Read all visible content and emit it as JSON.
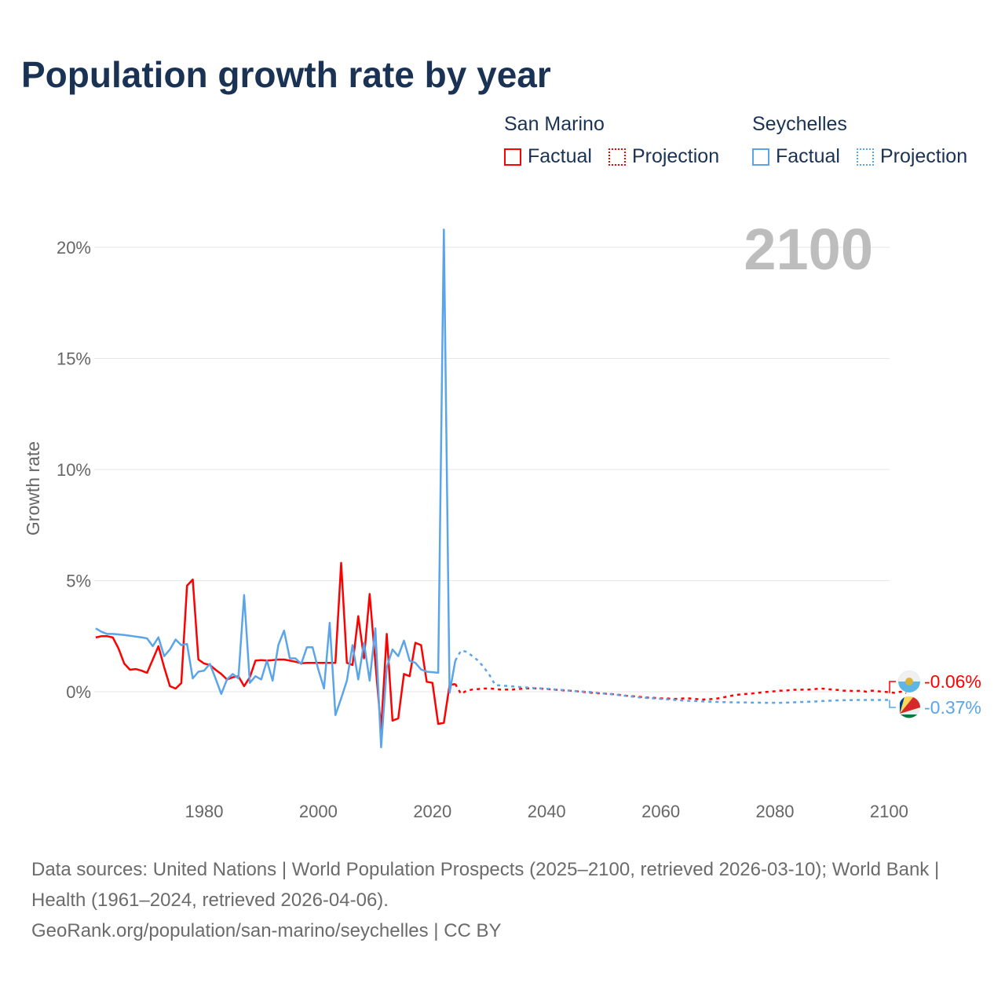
{
  "title": "Population growth rate by year",
  "legend": {
    "groups": [
      {
        "name": "San Marino",
        "color": "#ff0000",
        "factual_label": "Factual",
        "projection_label": "Projection"
      },
      {
        "name": "Seychelles",
        "color": "#5aa5ea",
        "factual_label": "Factual",
        "projection_label": "Projection"
      }
    ]
  },
  "year_display": "2100",
  "chart_data": {
    "type": "line",
    "title": "Population growth rate by year",
    "xlabel": "",
    "ylabel": "Growth rate",
    "xlim": [
      1961,
      2100
    ],
    "ylim": [
      -4.5,
      22
    ],
    "x_ticks": [
      1980,
      2000,
      2020,
      2040,
      2060,
      2080,
      2100
    ],
    "x_tick_labels": [
      "1980",
      "2000",
      "2020",
      "2040",
      "2060",
      "2080",
      "2100"
    ],
    "y_ticks": [
      0,
      5,
      10,
      15,
      20
    ],
    "y_tick_labels": [
      "0%",
      "5%",
      "10%",
      "15%",
      "20%"
    ],
    "grid": true,
    "legend_position": "top-right",
    "series": [
      {
        "name": "San Marino",
        "type": "factual",
        "color": "#ff0000",
        "dashed": false,
        "start_year": 1961,
        "values": [
          2.44,
          2.5,
          2.5,
          2.44,
          1.95,
          1.27,
          0.99,
          1.02,
          0.95,
          0.85,
          1.45,
          2.05,
          1.1,
          0.25,
          0.14,
          0.39,
          4.77,
          5.05,
          1.45,
          1.27,
          1.2,
          0.99,
          0.8,
          0.55,
          0.65,
          0.7,
          0.25,
          0.65,
          1.4,
          1.42,
          1.4,
          1.42,
          1.45,
          1.45,
          1.4,
          1.35,
          1.28,
          1.3,
          1.3,
          1.3,
          1.3,
          1.3,
          1.3,
          5.8,
          1.3,
          1.2,
          3.4,
          1.5,
          4.4,
          1.3,
          -1.7,
          2.6,
          -1.3,
          -1.2,
          0.8,
          0.7,
          2.2,
          2.1,
          0.45,
          0.4,
          -1.45,
          -1.4,
          0.3,
          0.35
        ]
      },
      {
        "name": "San Marino",
        "type": "projection",
        "color": "#ff0000",
        "dashed": true,
        "start_year": 2024,
        "values": [
          0.35,
          -0.1,
          0.05,
          0.1,
          0.12,
          0.14,
          0.15,
          0.12,
          0.1,
          0.1,
          0.1,
          0.12,
          0.14,
          0.15,
          0.15,
          0.14,
          0.12,
          0.1,
          0.08,
          0.06,
          0.05,
          0.03,
          0.0,
          -0.02,
          -0.05,
          -0.07,
          -0.08,
          -0.1,
          -0.12,
          -0.15,
          -0.18,
          -0.2,
          -0.22,
          -0.25,
          -0.27,
          -0.28,
          -0.3,
          -0.3,
          -0.32,
          -0.32,
          -0.3,
          -0.3,
          -0.32,
          -0.35,
          -0.35,
          -0.33,
          -0.3,
          -0.25,
          -0.2,
          -0.15,
          -0.12,
          -0.1,
          -0.08,
          -0.05,
          -0.02,
          0.0,
          0.02,
          0.05,
          0.05,
          0.1,
          0.08,
          0.1,
          0.1,
          0.12,
          0.15,
          0.12,
          0.1,
          0.08,
          0.05,
          0.05,
          0.02,
          0.05,
          0.0,
          0.05,
          0.02,
          0.0,
          -0.02,
          -0.05,
          0.0,
          -0.06
        ]
      },
      {
        "name": "Seychelles",
        "type": "factual",
        "color": "#5aa5ea",
        "dashed": false,
        "start_year": 1961,
        "values": [
          2.85,
          2.7,
          2.6,
          2.6,
          2.58,
          2.55,
          2.52,
          2.48,
          2.45,
          2.4,
          2.05,
          2.45,
          1.6,
          1.9,
          2.35,
          2.1,
          2.15,
          0.6,
          0.9,
          0.95,
          1.25,
          0.6,
          -0.1,
          0.55,
          0.8,
          0.6,
          4.35,
          0.4,
          0.7,
          0.55,
          1.4,
          0.5,
          2.1,
          2.75,
          1.5,
          1.5,
          1.25,
          2.0,
          2.0,
          1.0,
          0.15,
          3.1,
          -1.05,
          -0.3,
          0.5,
          2.1,
          0.55,
          2.2,
          0.5,
          2.85,
          -2.5,
          1.1,
          1.9,
          1.6,
          2.3,
          1.4,
          1.3,
          1.0,
          0.9,
          0.88,
          0.85,
          20.8,
          -0.05,
          1.4
        ]
      },
      {
        "name": "Seychelles",
        "type": "projection",
        "color": "#5aa5ea",
        "dashed": true,
        "start_year": 2024,
        "values": [
          1.4,
          1.85,
          1.8,
          1.6,
          1.4,
          1.1,
          0.75,
          0.3,
          0.28,
          0.26,
          0.24,
          0.22,
          0.2,
          0.18,
          0.16,
          0.15,
          0.13,
          0.11,
          0.09,
          0.07,
          0.05,
          0.03,
          0.01,
          0.0,
          -0.02,
          -0.05,
          -0.08,
          -0.1,
          -0.13,
          -0.16,
          -0.19,
          -0.22,
          -0.25,
          -0.27,
          -0.29,
          -0.3,
          -0.32,
          -0.34,
          -0.36,
          -0.38,
          -0.4,
          -0.41,
          -0.42,
          -0.43,
          -0.44,
          -0.45,
          -0.46,
          -0.47,
          -0.47,
          -0.48,
          -0.48,
          -0.48,
          -0.49,
          -0.49,
          -0.5,
          -0.5,
          -0.5,
          -0.5,
          -0.49,
          -0.48,
          -0.47,
          -0.46,
          -0.45,
          -0.44,
          -0.42,
          -0.41,
          -0.4,
          -0.39,
          -0.38,
          -0.38,
          -0.37,
          -0.37,
          -0.37,
          -0.37,
          -0.37,
          -0.37,
          -0.37
        ]
      }
    ],
    "end_labels": [
      {
        "country": "San Marino",
        "value_label": "-0.06%",
        "color": "#ff0000"
      },
      {
        "country": "Seychelles",
        "value_label": "-0.37%",
        "color": "#5aa5ea"
      }
    ]
  },
  "footer": {
    "sources": "Data sources: United Nations | World Population Prospects (2025–2100, retrieved 2026-03-10); World Bank | Health (1961–2024, retrieved 2026-04-06).",
    "credit": "GeoRank.org/population/san-marino/seychelles | CC BY"
  }
}
